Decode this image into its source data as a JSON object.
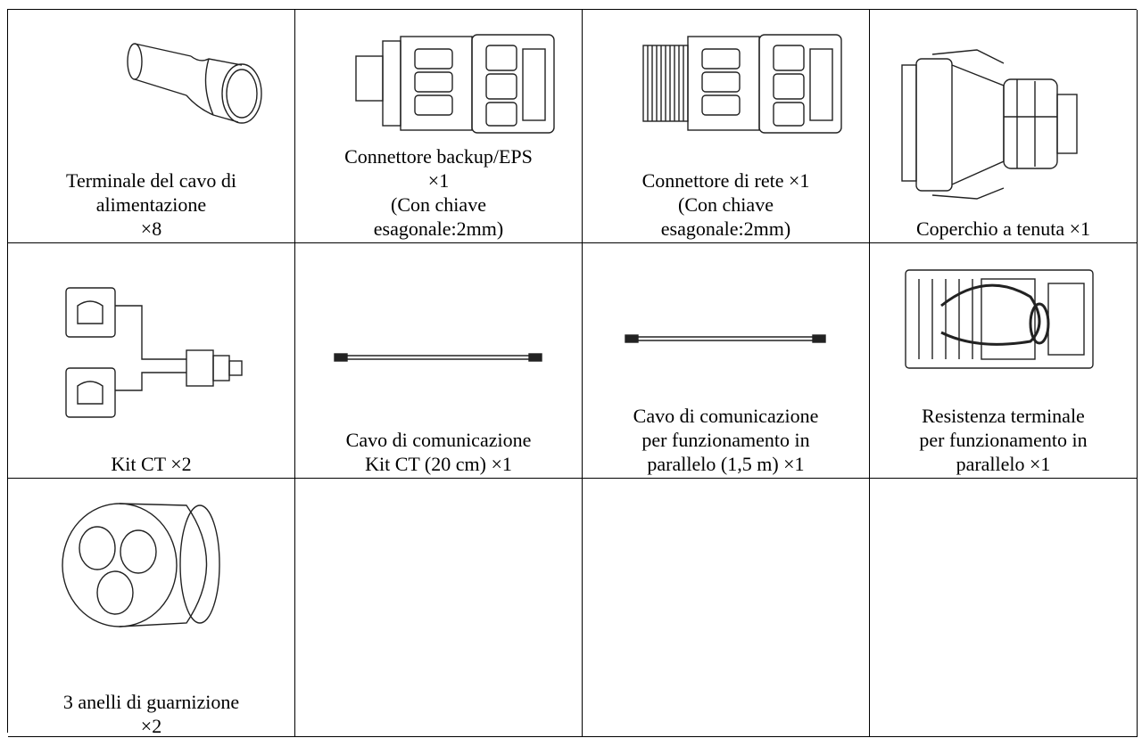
{
  "table": {
    "rows": [
      [
        [
          "Terminale del cavo di",
          "alimentazione",
          "×8"
        ],
        [
          "Connettore backup/EPS",
          "×1",
          "(Con chiave",
          "esagonale:2mm)"
        ],
        [
          "Connettore di rete ×1",
          "(Con chiave",
          "esagonale:2mm)"
        ],
        [
          "Coperchio a tenuta ×1"
        ]
      ],
      [
        [
          "Kit CT ×2"
        ],
        [
          "Cavo di comunicazione",
          "Kit CT (20 cm) ×1"
        ],
        [
          "Cavo di comunicazione",
          "per funzionamento in",
          "parallelo (1,5 m) ×1"
        ],
        [
          "Resistenza terminale",
          "per funzionamento in",
          "parallelo ×1"
        ]
      ],
      [
        [
          "3 anelli di guarnizione",
          "×2"
        ]
      ]
    ]
  }
}
